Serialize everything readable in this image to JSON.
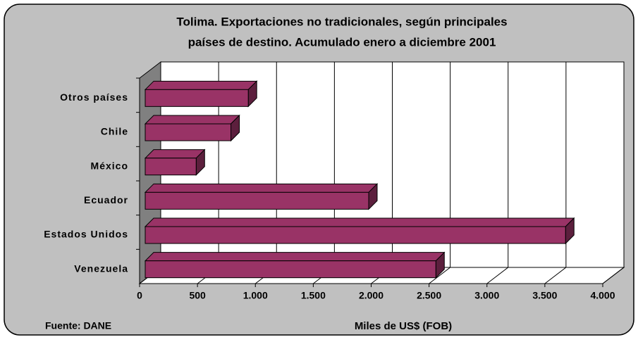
{
  "chart_data": {
    "type": "bar",
    "orientation": "horizontal",
    "title": "Tolima. Exportaciones no tradicionales, según principales países de destino.  Acumulado enero a diciembre 2001",
    "categories": [
      "Otros países",
      "Chile",
      "México",
      "Ecuador",
      "Estados Unidos",
      "Venezuela"
    ],
    "values": [
      890,
      740,
      440,
      1930,
      3630,
      2510
    ],
    "color": "#993366",
    "xlim": [
      0,
      4000
    ],
    "xticks": [
      0,
      500,
      {
        "value": 1000,
        "label": "1.000"
      },
      {
        "value": 1500,
        "label": "1.500"
      },
      {
        "value": 2000,
        "label": "2.000"
      },
      {
        "value": 2500,
        "label": "2.500"
      },
      {
        "value": 3000,
        "label": "3.000"
      },
      {
        "value": 3500,
        "label": "3.500"
      },
      {
        "value": 4000,
        "label": "4.000"
      }
    ],
    "xlabel": "Miles de US$ (FOB)",
    "source": "Fuente: DANE",
    "grid": true
  }
}
